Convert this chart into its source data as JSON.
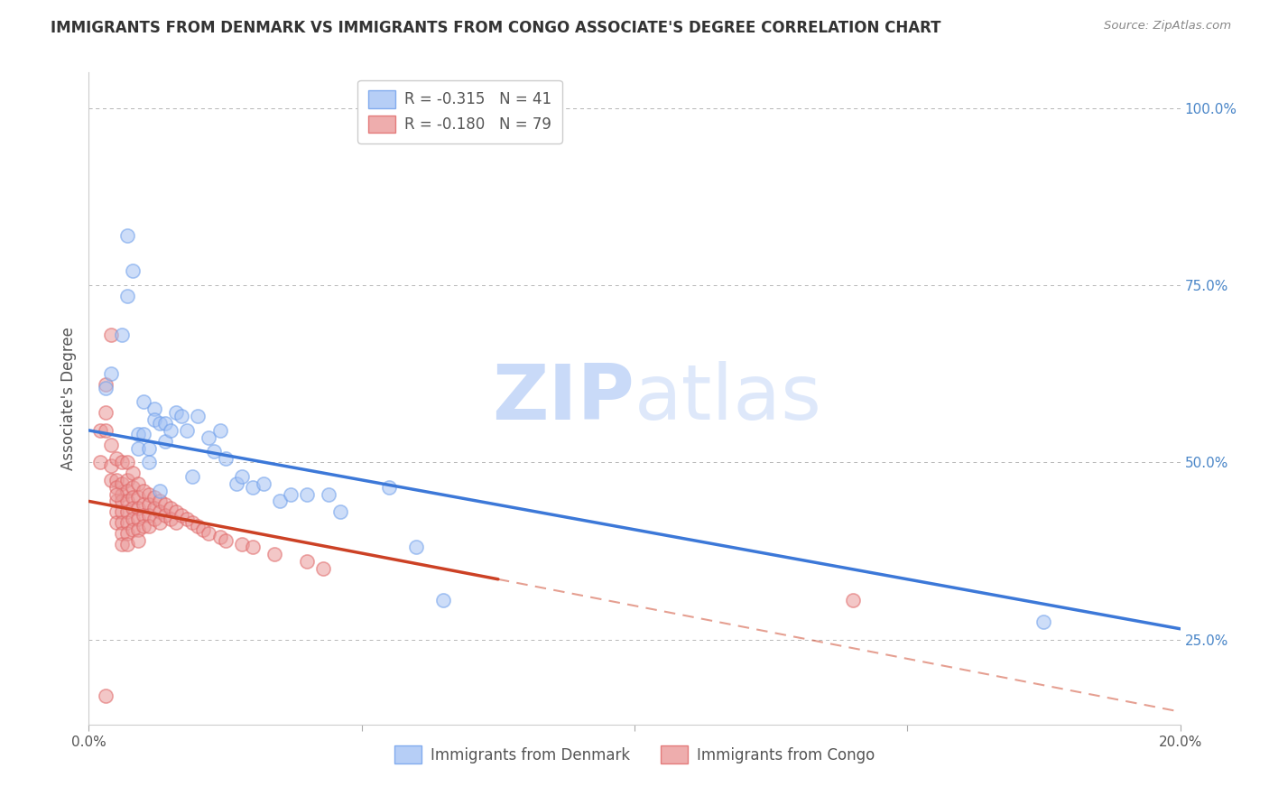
{
  "title": "IMMIGRANTS FROM DENMARK VS IMMIGRANTS FROM CONGO ASSOCIATE'S DEGREE CORRELATION CHART",
  "source": "Source: ZipAtlas.com",
  "ylabel": "Associate's Degree",
  "right_ylabel_color": "#4a86c8",
  "xlim": [
    0.0,
    0.2
  ],
  "ylim": [
    0.13,
    1.05
  ],
  "xticks": [
    0.0,
    0.05,
    0.1,
    0.15,
    0.2
  ],
  "xtick_labels": [
    "0.0%",
    "",
    "",
    "",
    "20.0%"
  ],
  "yticks_right": [
    0.25,
    0.5,
    0.75,
    1.0
  ],
  "ytick_right_labels": [
    "25.0%",
    "50.0%",
    "75.0%",
    "100.0%"
  ],
  "legend_r_denmark": "-0.315",
  "legend_n_denmark": "41",
  "legend_r_congo": "-0.180",
  "legend_n_congo": "79",
  "denmark_color": "#a4c2f4",
  "denmark_edge_color": "#6d9eeb",
  "congo_color": "#ea9999",
  "congo_edge_color": "#e06666",
  "trend_denmark_color": "#3c78d8",
  "trend_congo_color": "#cc4125",
  "watermark_zip": "ZIP",
  "watermark_atlas": "atlas",
  "watermark_color": "#c9daf8",
  "background_color": "#ffffff",
  "grid_color": "#b7b7b7",
  "title_fontsize": 12,
  "axis_label_fontsize": 12,
  "tick_fontsize": 11,
  "scatter_size": 120,
  "scatter_alpha": 0.55,
  "scatter_linewidth": 1.2,
  "denmark_trend_x0": 0.0,
  "denmark_trend_x1": 0.2,
  "denmark_trend_y0": 0.545,
  "denmark_trend_y1": 0.265,
  "congo_trend_solid_x0": 0.0,
  "congo_trend_solid_x1": 0.075,
  "congo_trend_y0": 0.445,
  "congo_trend_y1": 0.335,
  "congo_trend_dash_x0": 0.075,
  "congo_trend_dash_x1": 0.2,
  "congo_trend_dash_y0": 0.335,
  "congo_trend_dash_y1": 0.148,
  "denmark_x": [
    0.003,
    0.004,
    0.006,
    0.007,
    0.008,
    0.009,
    0.009,
    0.01,
    0.01,
    0.011,
    0.011,
    0.012,
    0.012,
    0.013,
    0.014,
    0.014,
    0.015,
    0.016,
    0.017,
    0.018,
    0.019,
    0.02,
    0.022,
    0.023,
    0.024,
    0.025,
    0.027,
    0.028,
    0.03,
    0.032,
    0.035,
    0.037,
    0.04,
    0.044,
    0.046,
    0.055,
    0.06,
    0.065,
    0.175,
    0.007,
    0.013
  ],
  "denmark_y": [
    0.605,
    0.625,
    0.68,
    0.82,
    0.77,
    0.54,
    0.52,
    0.585,
    0.54,
    0.52,
    0.5,
    0.575,
    0.56,
    0.555,
    0.555,
    0.53,
    0.545,
    0.57,
    0.565,
    0.545,
    0.48,
    0.565,
    0.535,
    0.515,
    0.545,
    0.505,
    0.47,
    0.48,
    0.465,
    0.47,
    0.445,
    0.455,
    0.455,
    0.455,
    0.43,
    0.465,
    0.38,
    0.305,
    0.275,
    0.735,
    0.46
  ],
  "congo_x": [
    0.002,
    0.002,
    0.003,
    0.003,
    0.003,
    0.004,
    0.004,
    0.004,
    0.004,
    0.005,
    0.005,
    0.005,
    0.005,
    0.005,
    0.005,
    0.006,
    0.006,
    0.006,
    0.006,
    0.006,
    0.006,
    0.006,
    0.006,
    0.007,
    0.007,
    0.007,
    0.007,
    0.007,
    0.007,
    0.007,
    0.007,
    0.008,
    0.008,
    0.008,
    0.008,
    0.008,
    0.008,
    0.009,
    0.009,
    0.009,
    0.009,
    0.009,
    0.009,
    0.01,
    0.01,
    0.01,
    0.01,
    0.011,
    0.011,
    0.011,
    0.011,
    0.012,
    0.012,
    0.012,
    0.013,
    0.013,
    0.013,
    0.014,
    0.014,
    0.015,
    0.015,
    0.016,
    0.016,
    0.017,
    0.018,
    0.019,
    0.02,
    0.021,
    0.022,
    0.024,
    0.025,
    0.028,
    0.03,
    0.034,
    0.04,
    0.043,
    0.003,
    0.005,
    0.14
  ],
  "congo_y": [
    0.545,
    0.5,
    0.61,
    0.57,
    0.545,
    0.68,
    0.525,
    0.495,
    0.475,
    0.505,
    0.475,
    0.465,
    0.445,
    0.43,
    0.415,
    0.5,
    0.47,
    0.455,
    0.445,
    0.43,
    0.415,
    0.4,
    0.385,
    0.5,
    0.475,
    0.46,
    0.445,
    0.43,
    0.415,
    0.4,
    0.385,
    0.485,
    0.465,
    0.45,
    0.435,
    0.42,
    0.405,
    0.47,
    0.45,
    0.435,
    0.42,
    0.405,
    0.39,
    0.46,
    0.44,
    0.425,
    0.41,
    0.455,
    0.44,
    0.425,
    0.41,
    0.45,
    0.435,
    0.42,
    0.445,
    0.43,
    0.415,
    0.44,
    0.425,
    0.435,
    0.42,
    0.43,
    0.415,
    0.425,
    0.42,
    0.415,
    0.41,
    0.405,
    0.4,
    0.395,
    0.39,
    0.385,
    0.38,
    0.37,
    0.36,
    0.35,
    0.17,
    0.455,
    0.305
  ]
}
